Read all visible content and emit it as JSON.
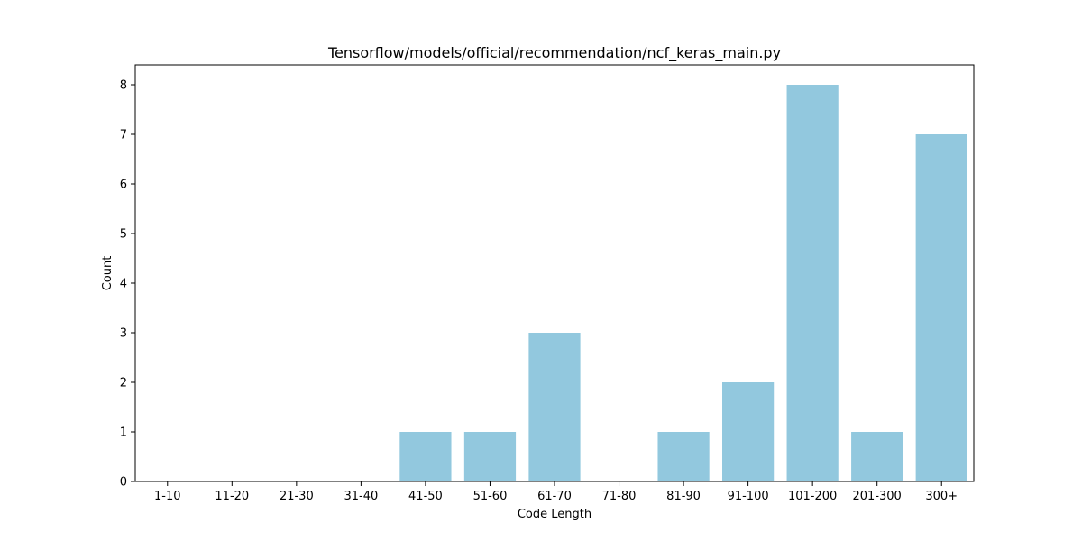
{
  "chart_data": {
    "type": "bar",
    "title": "Tensorflow/models/official/recommendation/ncf_keras_main.py",
    "xlabel": "Code Length",
    "ylabel": "Count",
    "categories": [
      "1-10",
      "11-20",
      "21-30",
      "31-40",
      "41-50",
      "51-60",
      "61-70",
      "71-80",
      "81-90",
      "91-100",
      "101-200",
      "201-300",
      "300+"
    ],
    "values": [
      0,
      0,
      0,
      0,
      1,
      1,
      3,
      0,
      1,
      2,
      8,
      1,
      7
    ],
    "ylim": [
      0,
      8.4
    ],
    "yticks": [
      "0",
      "1",
      "2",
      "3",
      "4",
      "5",
      "6",
      "7",
      "8"
    ],
    "grid": false,
    "bar_color": "#92c8de"
  }
}
